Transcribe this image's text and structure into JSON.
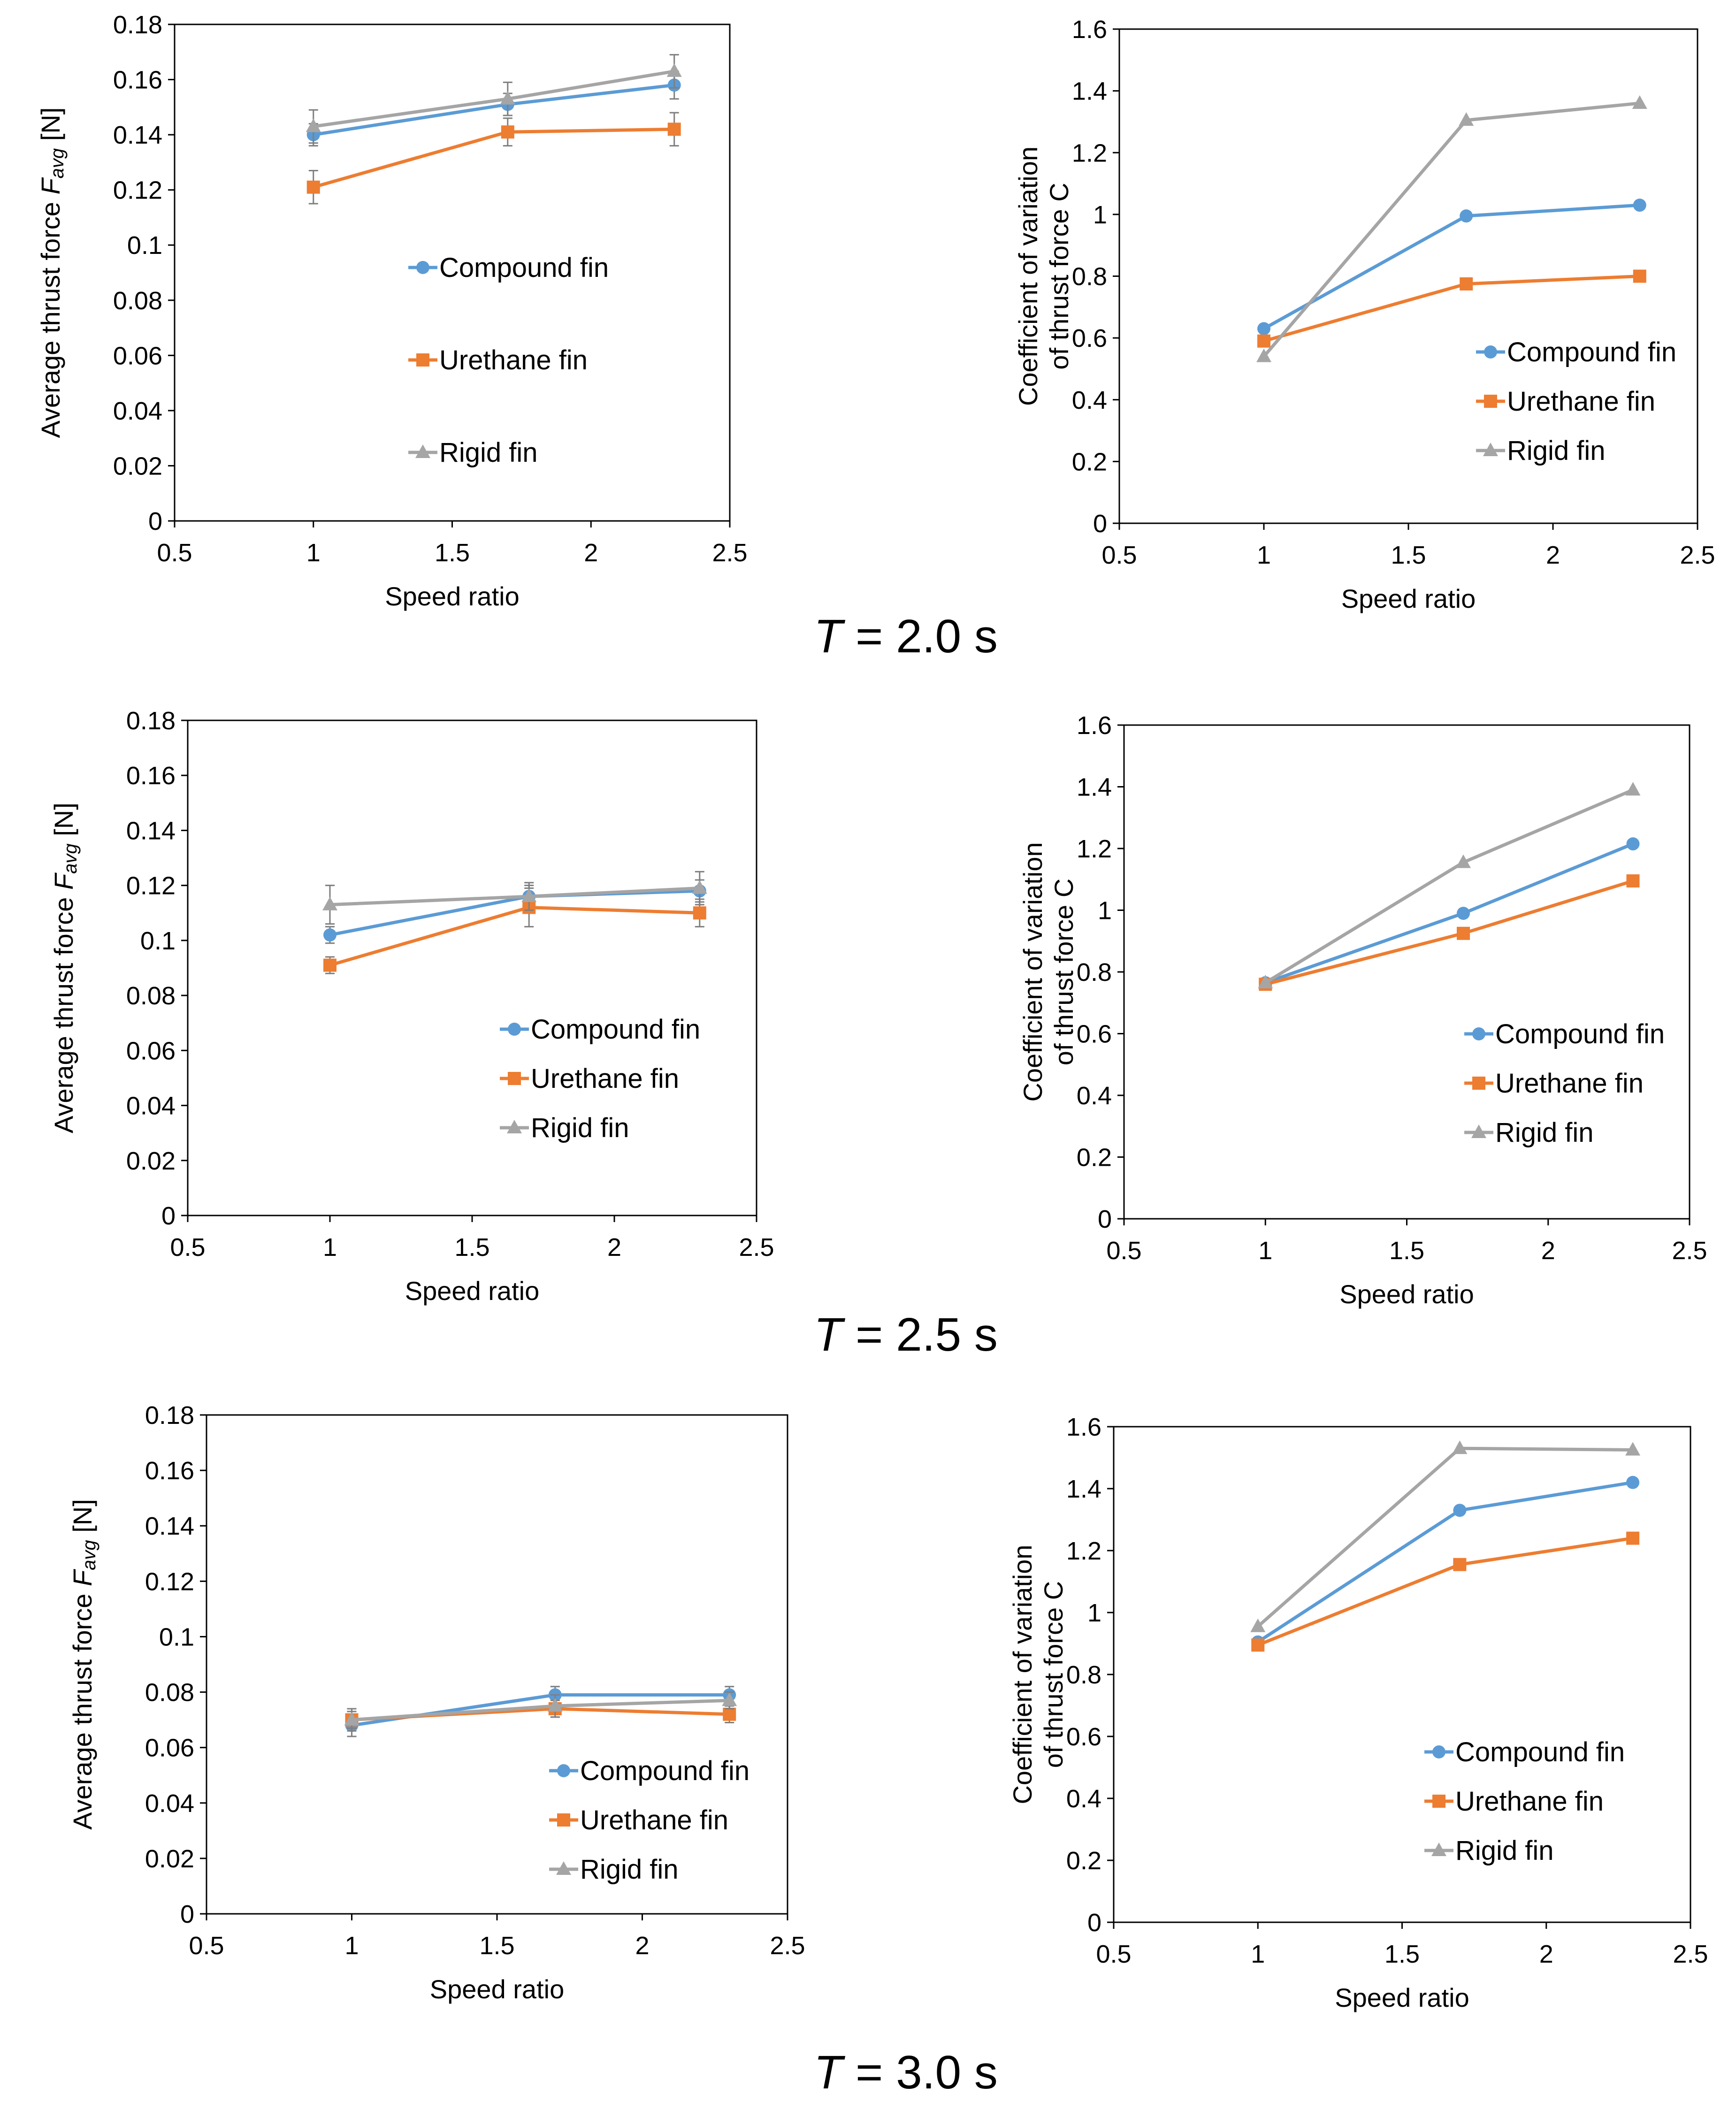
{
  "colors": {
    "Compound fin": "#5b9bd5",
    "Urethane fin": "#ed7d31",
    "Rigid fin": "#a5a5a5",
    "error_bar": "#7f7f7f",
    "axis": "#000000"
  },
  "markers": {
    "Compound fin": "circle",
    "Urethane fin": "square",
    "Rigid fin": "triangle"
  },
  "chart_data": [
    {
      "type": "line",
      "group": "T = 2.0 s",
      "column": "thrust",
      "ylabel_prefix": "Average thrust force ",
      "ylabel_symbol": "F",
      "ylabel_sub": "avg",
      "ylabel_suffix": " [N]",
      "xlabel": "Speed ratio",
      "xlim": [
        0.5,
        2.5
      ],
      "ylim": [
        0,
        0.18
      ],
      "xticks": [
        "0.5",
        "1",
        "1.5",
        "2",
        "2.5"
      ],
      "yticks": [
        "0",
        "0.02",
        "0.04",
        "0.06",
        "0.08",
        "0.1",
        "0.12",
        "0.14",
        "0.16",
        "0.18"
      ],
      "grid": false,
      "legend_position": "center",
      "series": [
        {
          "name": "Compound fin",
          "x": [
            1,
            1.7,
            2.3
          ],
          "y": [
            0.14,
            0.151,
            0.158
          ],
          "err": [
            0.004,
            0.004,
            0.005
          ]
        },
        {
          "name": "Urethane fin",
          "x": [
            1,
            1.7,
            2.3
          ],
          "y": [
            0.121,
            0.141,
            0.142
          ],
          "err": [
            0.006,
            0.005,
            0.006
          ]
        },
        {
          "name": "Rigid fin",
          "x": [
            1,
            1.7,
            2.3
          ],
          "y": [
            0.143,
            0.153,
            0.163
          ],
          "err": [
            0.006,
            0.006,
            0.006
          ]
        }
      ]
    },
    {
      "type": "line",
      "group": "T = 2.0 s",
      "column": "cv",
      "ylabel_lines": [
        "Coefficient of variation",
        "of thrust force C"
      ],
      "xlabel": "Speed ratio",
      "xlim": [
        0.5,
        2.5
      ],
      "ylim": [
        0,
        1.6
      ],
      "xticks": [
        "0.5",
        "1",
        "1.5",
        "2",
        "2.5"
      ],
      "yticks": [
        "0",
        "0.2",
        "0.4",
        "0.6",
        "0.8",
        "1",
        "1.2",
        "1.4",
        "1.6"
      ],
      "grid": false,
      "legend_position": "bottom-right",
      "series": [
        {
          "name": "Compound fin",
          "x": [
            1,
            1.7,
            2.3
          ],
          "y": [
            0.63,
            0.995,
            1.03
          ]
        },
        {
          "name": "Urethane fin",
          "x": [
            1,
            1.7,
            2.3
          ],
          "y": [
            0.59,
            0.775,
            0.8
          ]
        },
        {
          "name": "Rigid fin",
          "x": [
            1,
            1.7,
            2.3
          ],
          "y": [
            0.54,
            1.305,
            1.36
          ]
        }
      ]
    },
    {
      "type": "line",
      "group": "T = 2.5 s",
      "column": "thrust",
      "ylabel_prefix": "Average thrust force ",
      "ylabel_symbol": "F",
      "ylabel_sub": "avg",
      "ylabel_suffix": " [N]",
      "xlabel": "Speed ratio",
      "xlim": [
        0.5,
        2.5
      ],
      "ylim": [
        0,
        0.18
      ],
      "xticks": [
        "0.5",
        "1",
        "1.5",
        "2",
        "2.5"
      ],
      "yticks": [
        "0",
        "0.02",
        "0.04",
        "0.06",
        "0.08",
        "0.1",
        "0.12",
        "0.14",
        "0.16",
        "0.18"
      ],
      "grid": false,
      "legend_position": "bottom-right",
      "series": [
        {
          "name": "Compound fin",
          "x": [
            1,
            1.7,
            2.3
          ],
          "y": [
            0.102,
            0.116,
            0.118
          ],
          "err": [
            0.003,
            0.004,
            0.004
          ]
        },
        {
          "name": "Urethane fin",
          "x": [
            1,
            1.7,
            2.3
          ],
          "y": [
            0.091,
            0.112,
            0.11
          ],
          "err": [
            0.003,
            0.007,
            0.005
          ]
        },
        {
          "name": "Rigid fin",
          "x": [
            1,
            1.7,
            2.3
          ],
          "y": [
            0.113,
            0.116,
            0.119
          ],
          "err": [
            0.007,
            0.005,
            0.006
          ]
        }
      ]
    },
    {
      "type": "line",
      "group": "T = 2.5 s",
      "column": "cv",
      "ylabel_lines": [
        "Coefficient of variation",
        "of thrust force C"
      ],
      "xlabel": "Speed ratio",
      "xlim": [
        0.5,
        2.5
      ],
      "ylim": [
        0,
        1.6
      ],
      "xticks": [
        "0.5",
        "1",
        "1.5",
        "2",
        "2.5"
      ],
      "yticks": [
        "0",
        "0.2",
        "0.4",
        "0.6",
        "0.8",
        "1",
        "1.2",
        "1.4",
        "1.6"
      ],
      "grid": false,
      "legend_position": "bottom-right",
      "series": [
        {
          "name": "Compound fin",
          "x": [
            1,
            1.7,
            2.3
          ],
          "y": [
            0.765,
            0.99,
            1.215
          ]
        },
        {
          "name": "Urethane fin",
          "x": [
            1,
            1.7,
            2.3
          ],
          "y": [
            0.76,
            0.925,
            1.095
          ]
        },
        {
          "name": "Rigid fin",
          "x": [
            1,
            1.7,
            2.3
          ],
          "y": [
            0.765,
            1.155,
            1.39
          ]
        }
      ]
    },
    {
      "type": "line",
      "group": "T = 3.0 s",
      "column": "thrust",
      "ylabel_prefix": "Average thrust force ",
      "ylabel_symbol": "F",
      "ylabel_sub": "avg",
      "ylabel_suffix": " [N]",
      "xlabel": "Speed ratio",
      "xlim": [
        0.5,
        2.5
      ],
      "ylim": [
        0,
        0.18
      ],
      "xticks": [
        "0.5",
        "1",
        "1.5",
        "2",
        "2.5"
      ],
      "yticks": [
        "0",
        "0.02",
        "0.04",
        "0.06",
        "0.08",
        "0.1",
        "0.12",
        "0.14",
        "0.16",
        "0.18"
      ],
      "grid": false,
      "legend_position": "bottom-right",
      "series": [
        {
          "name": "Compound fin",
          "x": [
            1,
            1.7,
            2.3
          ],
          "y": [
            0.068,
            0.079,
            0.079
          ],
          "err": [
            0.004,
            0.003,
            0.003
          ]
        },
        {
          "name": "Urethane fin",
          "x": [
            1,
            1.7,
            2.3
          ],
          "y": [
            0.07,
            0.074,
            0.072
          ],
          "err": [
            0.003,
            0.003,
            0.003
          ]
        },
        {
          "name": "Rigid fin",
          "x": [
            1,
            1.7,
            2.3
          ],
          "y": [
            0.07,
            0.075,
            0.077
          ],
          "err": [
            0.004,
            0.004,
            0.003
          ]
        }
      ]
    },
    {
      "type": "line",
      "group": "T = 3.0 s",
      "column": "cv",
      "ylabel_lines": [
        "Coefficient of variation",
        "of thrust force C"
      ],
      "xlabel": "Speed ratio",
      "xlim": [
        0.5,
        2.5
      ],
      "ylim": [
        0,
        1.6
      ],
      "xticks": [
        "0.5",
        "1",
        "1.5",
        "2",
        "2.5"
      ],
      "yticks": [
        "0",
        "0.2",
        "0.4",
        "0.6",
        "0.8",
        "1",
        "1.2",
        "1.4",
        "1.6"
      ],
      "grid": false,
      "legend_position": "bottom-right",
      "series": [
        {
          "name": "Compound fin",
          "x": [
            1,
            1.7,
            2.3
          ],
          "y": [
            0.905,
            1.33,
            1.42
          ]
        },
        {
          "name": "Urethane fin",
          "x": [
            1,
            1.7,
            2.3
          ],
          "y": [
            0.895,
            1.155,
            1.24
          ]
        },
        {
          "name": "Rigid fin",
          "x": [
            1,
            1.7,
            2.3
          ],
          "y": [
            0.955,
            1.53,
            1.525
          ]
        }
      ]
    }
  ],
  "captions": [
    {
      "symbol": "T",
      "rest": " = 2.0 s"
    },
    {
      "symbol": "T",
      "rest": " = 2.5 s"
    },
    {
      "symbol": "T",
      "rest": " = 3.0 s"
    }
  ]
}
